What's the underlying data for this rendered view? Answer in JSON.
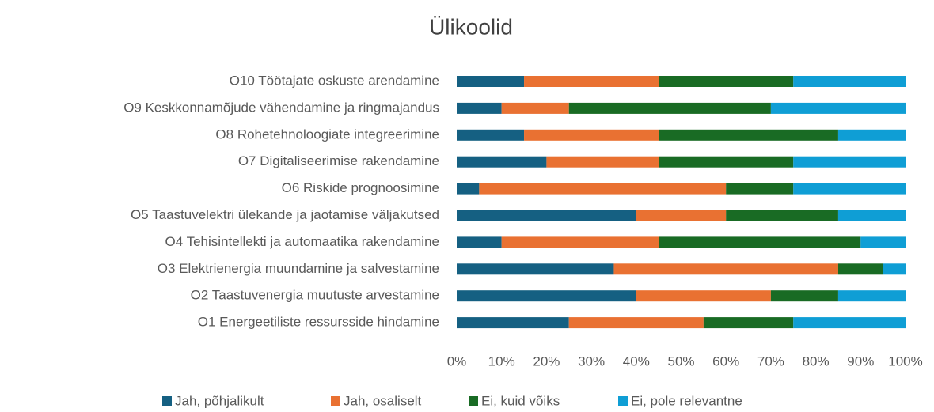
{
  "chart_data": {
    "type": "stacked_bar_horizontal",
    "title": "Ülikoolid",
    "categories": [
      "O10 Töötajate oskuste arendamine",
      "O9 Keskkonnamõjude vähendamine ja ringmajandus",
      "O8 Rohetehnoloogiate integreerimine",
      "O7 Digitaliseerimise rakendamine",
      "O6 Riskide prognoosimine",
      "O5 Taastuvelektri ülekande ja jaotamise väljakutsed",
      "O4 Tehisintellekti ja automaatika rakendamine",
      "O3 Elektrienergia muundamine ja salvestamine",
      "O2 Taastuvenergia muutuste arvestamine",
      "O1 Energeetiliste ressursside hindamine"
    ],
    "series": [
      {
        "name": "Jah, põhjalikult",
        "color": "#156082",
        "values": [
          15,
          10,
          15,
          20,
          5,
          40,
          10,
          35,
          40,
          25
        ]
      },
      {
        "name": "Jah, osaliselt",
        "color": "#e97132",
        "values": [
          30,
          15,
          30,
          25,
          55,
          20,
          35,
          50,
          30,
          30
        ]
      },
      {
        "name": "Ei, kuid võiks",
        "color": "#196b24",
        "values": [
          30,
          45,
          40,
          30,
          15,
          25,
          45,
          10,
          15,
          20
        ]
      },
      {
        "name": "Ei, pole relevantne",
        "color": "#0f9ed5",
        "values": [
          25,
          30,
          15,
          25,
          25,
          15,
          10,
          5,
          15,
          25
        ]
      }
    ],
    "xlim": [
      0,
      100
    ],
    "xticks": [
      {
        "value": 0,
        "label": "0%"
      },
      {
        "value": 10,
        "label": "10%"
      },
      {
        "value": 20,
        "label": "20%"
      },
      {
        "value": 30,
        "label": "30%"
      },
      {
        "value": 40,
        "label": "40%"
      },
      {
        "value": 50,
        "label": "50%"
      },
      {
        "value": 60,
        "label": "60%"
      },
      {
        "value": 70,
        "label": "70%"
      },
      {
        "value": 80,
        "label": "80%"
      },
      {
        "value": 90,
        "label": "90%"
      },
      {
        "value": 100,
        "label": "100%"
      }
    ],
    "legend": "bottom"
  }
}
